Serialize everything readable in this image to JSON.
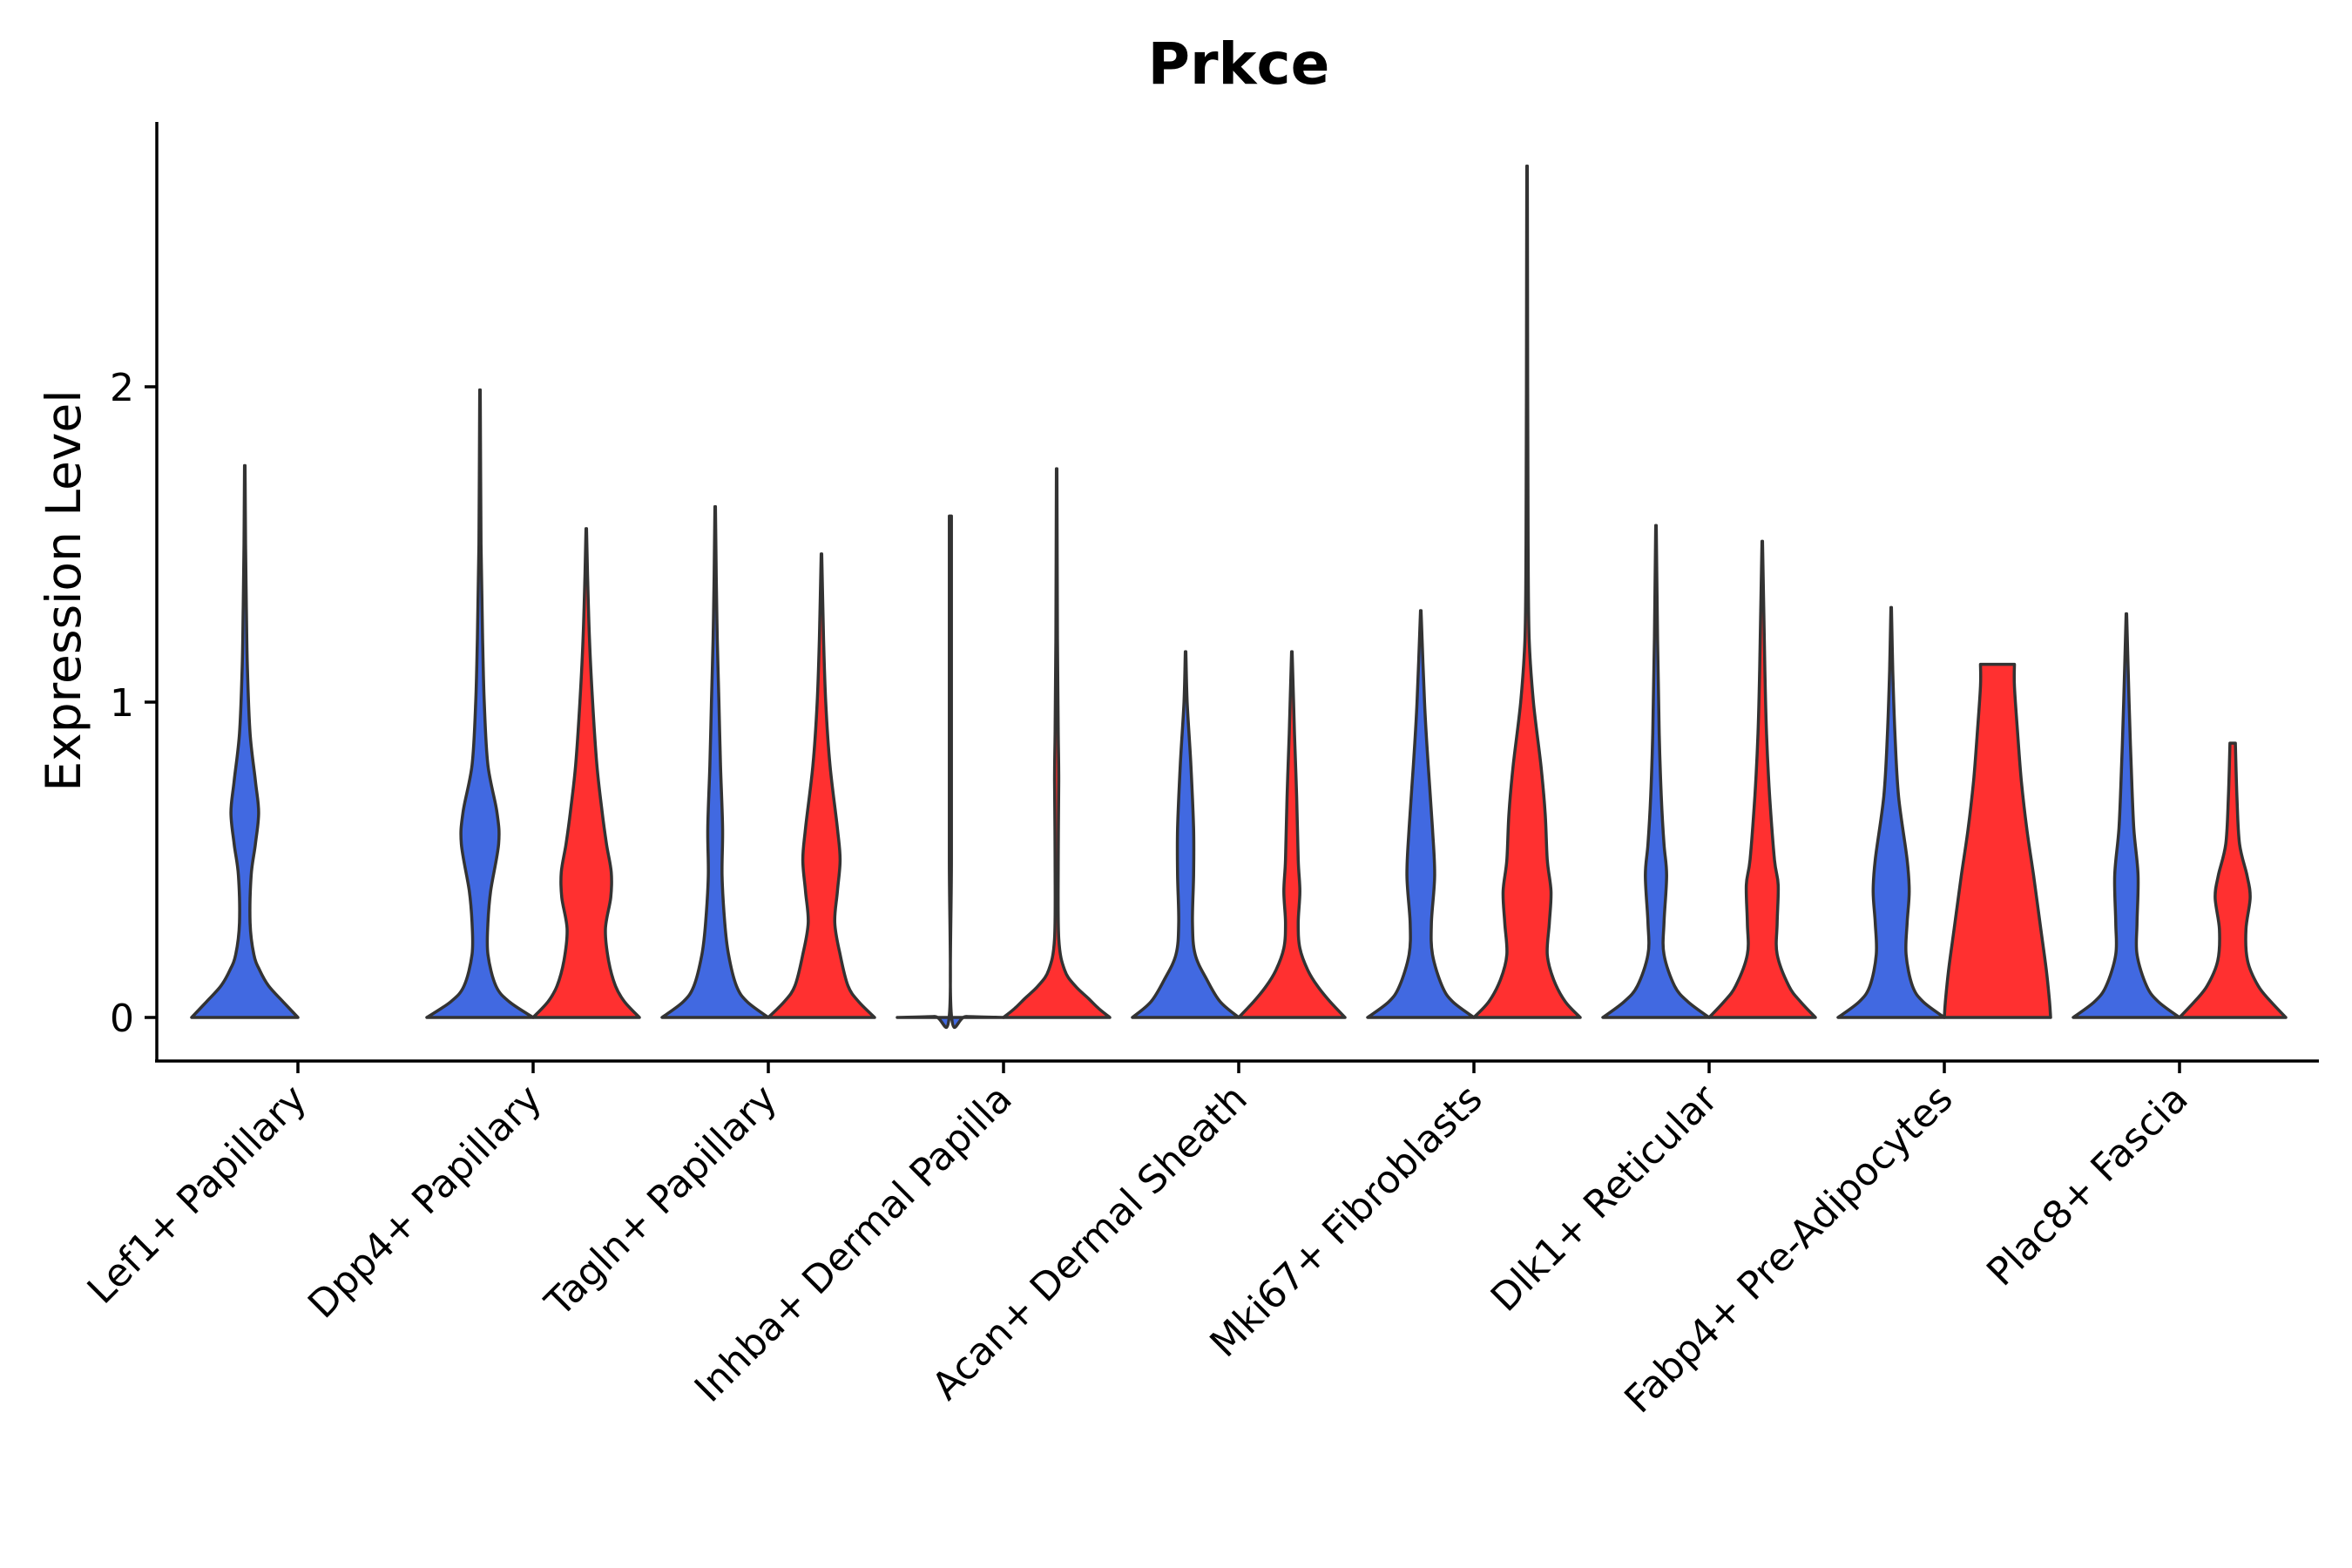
{
  "chart_data": {
    "type": "violin",
    "title": "Prkce",
    "ylabel": "Expression Level",
    "xlabel": "",
    "ylim": [
      -0.14,
      2.85
    ],
    "yticks": [
      0,
      1,
      2
    ],
    "grid": false,
    "colors": {
      "left": "#4169E1",
      "right": "#FF3030",
      "outline": "#333333"
    },
    "categories": [
      "Lef1+ Papillary",
      "Dpp4+ Papillary",
      "Tagln+ Papillary",
      "Inhba+ Dermal Papilla",
      "Acan+ Dermal Sheath",
      "Mki67+ Fibroblasts",
      "Dlk1+ Reticular",
      "Fabp4+ Pre-Adipocytes",
      "Plac8+ Fascia"
    ],
    "series": [
      {
        "violins": [
          {
            "max": 1.75,
            "profile": [
              [
                0,
                1
              ],
              [
                0.05,
                0.72
              ],
              [
                0.1,
                0.45
              ],
              [
                0.15,
                0.28
              ],
              [
                0.2,
                0.17
              ],
              [
                0.3,
                0.1
              ],
              [
                0.45,
                0.12
              ],
              [
                0.55,
                0.2
              ],
              [
                0.65,
                0.26
              ],
              [
                0.75,
                0.2
              ],
              [
                0.9,
                0.1
              ],
              [
                1.1,
                0.05
              ],
              [
                1.3,
                0.03
              ],
              [
                1.5,
                0.015
              ],
              [
                1.75,
                0.005
              ]
            ]
          },
          {
            "max": 1.99,
            "profile": [
              [
                0,
                1
              ],
              [
                0.05,
                0.55
              ],
              [
                0.1,
                0.3
              ],
              [
                0.2,
                0.15
              ],
              [
                0.3,
                0.15
              ],
              [
                0.4,
                0.2
              ],
              [
                0.55,
                0.35
              ],
              [
                0.65,
                0.32
              ],
              [
                0.8,
                0.15
              ],
              [
                1.0,
                0.08
              ],
              [
                1.2,
                0.05
              ],
              [
                1.5,
                0.02
              ],
              [
                1.99,
                0.005
              ]
            ]
          },
          {
            "max": 1.62,
            "profile": [
              [
                0,
                1
              ],
              [
                0.05,
                0.6
              ],
              [
                0.1,
                0.4
              ],
              [
                0.2,
                0.25
              ],
              [
                0.3,
                0.18
              ],
              [
                0.45,
                0.13
              ],
              [
                0.6,
                0.14
              ],
              [
                0.8,
                0.1
              ],
              [
                1.0,
                0.07
              ],
              [
                1.2,
                0.04
              ],
              [
                1.4,
                0.02
              ],
              [
                1.62,
                0.005
              ]
            ]
          },
          {
            "max": 1.59,
            "profile": [
              [
                0,
                1
              ],
              [
                0.003,
                0.3
              ],
              [
                0.006,
                0.02
              ],
              [
                0.5,
                0.02
              ],
              [
                1.0,
                0.02
              ],
              [
                1.59,
                0.02
              ]
            ]
          },
          {
            "max": 1.16,
            "profile": [
              [
                0,
                1
              ],
              [
                0.05,
                0.65
              ],
              [
                0.12,
                0.4
              ],
              [
                0.2,
                0.18
              ],
              [
                0.3,
                0.13
              ],
              [
                0.45,
                0.15
              ],
              [
                0.6,
                0.15
              ],
              [
                0.8,
                0.1
              ],
              [
                1.0,
                0.03
              ],
              [
                1.16,
                0.005
              ]
            ]
          },
          {
            "max": 1.29,
            "profile": [
              [
                0,
                1
              ],
              [
                0.05,
                0.6
              ],
              [
                0.1,
                0.4
              ],
              [
                0.2,
                0.22
              ],
              [
                0.3,
                0.2
              ],
              [
                0.45,
                0.26
              ],
              [
                0.6,
                0.22
              ],
              [
                0.8,
                0.14
              ],
              [
                1.0,
                0.07
              ],
              [
                1.29,
                0.005
              ]
            ]
          },
          {
            "max": 1.56,
            "profile": [
              [
                0,
                1
              ],
              [
                0.05,
                0.6
              ],
              [
                0.1,
                0.35
              ],
              [
                0.2,
                0.15
              ],
              [
                0.3,
                0.15
              ],
              [
                0.45,
                0.2
              ],
              [
                0.55,
                0.15
              ],
              [
                0.7,
                0.1
              ],
              [
                0.9,
                0.06
              ],
              [
                1.2,
                0.03
              ],
              [
                1.56,
                0.005
              ]
            ]
          },
          {
            "max": 1.3,
            "profile": [
              [
                0,
                1
              ],
              [
                0.05,
                0.6
              ],
              [
                0.1,
                0.4
              ],
              [
                0.2,
                0.28
              ],
              [
                0.3,
                0.3
              ],
              [
                0.4,
                0.34
              ],
              [
                0.5,
                0.3
              ],
              [
                0.7,
                0.14
              ],
              [
                0.9,
                0.07
              ],
              [
                1.1,
                0.03
              ],
              [
                1.3,
                0.005
              ]
            ]
          },
          {
            "max": 1.28,
            "profile": [
              [
                0,
                1
              ],
              [
                0.05,
                0.6
              ],
              [
                0.1,
                0.38
              ],
              [
                0.2,
                0.2
              ],
              [
                0.3,
                0.2
              ],
              [
                0.45,
                0.22
              ],
              [
                0.6,
                0.14
              ],
              [
                0.8,
                0.09
              ],
              [
                1.0,
                0.05
              ],
              [
                1.28,
                0.005
              ]
            ]
          }
        ]
      },
      {
        "violins": null
      },
      {
        "violins": [
          null,
          {
            "max": 1.55,
            "profile": [
              [
                0,
                1
              ],
              [
                0.05,
                0.72
              ],
              [
                0.1,
                0.55
              ],
              [
                0.18,
                0.42
              ],
              [
                0.28,
                0.36
              ],
              [
                0.38,
                0.46
              ],
              [
                0.46,
                0.47
              ],
              [
                0.55,
                0.38
              ],
              [
                0.65,
                0.3
              ],
              [
                0.8,
                0.2
              ],
              [
                1.0,
                0.12
              ],
              [
                1.2,
                0.06
              ],
              [
                1.4,
                0.025
              ],
              [
                1.55,
                0.005
              ]
            ]
          },
          {
            "max": 1.47,
            "profile": [
              [
                0,
                1
              ],
              [
                0.05,
                0.7
              ],
              [
                0.1,
                0.5
              ],
              [
                0.2,
                0.35
              ],
              [
                0.3,
                0.25
              ],
              [
                0.4,
                0.3
              ],
              [
                0.5,
                0.35
              ],
              [
                0.6,
                0.3
              ],
              [
                0.8,
                0.16
              ],
              [
                1.0,
                0.08
              ],
              [
                1.2,
                0.04
              ],
              [
                1.47,
                0.005
              ]
            ]
          },
          {
            "max": 1.74,
            "profile": [
              [
                0,
                1
              ],
              [
                0.03,
                0.78
              ],
              [
                0.06,
                0.6
              ],
              [
                0.1,
                0.35
              ],
              [
                0.15,
                0.15
              ],
              [
                0.25,
                0.04
              ],
              [
                0.5,
                0.03
              ],
              [
                0.75,
                0.04
              ],
              [
                0.9,
                0.03
              ],
              [
                1.2,
                0.015
              ],
              [
                1.74,
                0.005
              ]
            ]
          },
          {
            "max": 1.16,
            "profile": [
              [
                0,
                1
              ],
              [
                0.05,
                0.72
              ],
              [
                0.1,
                0.48
              ],
              [
                0.15,
                0.3
              ],
              [
                0.22,
                0.15
              ],
              [
                0.3,
                0.12
              ],
              [
                0.4,
                0.15
              ],
              [
                0.5,
                0.12
              ],
              [
                0.7,
                0.09
              ],
              [
                0.9,
                0.05
              ],
              [
                1.16,
                0.005
              ]
            ]
          },
          {
            "max": 2.7,
            "profile": [
              [
                0,
                1
              ],
              [
                0.05,
                0.72
              ],
              [
                0.12,
                0.5
              ],
              [
                0.2,
                0.38
              ],
              [
                0.3,
                0.42
              ],
              [
                0.4,
                0.45
              ],
              [
                0.5,
                0.38
              ],
              [
                0.65,
                0.34
              ],
              [
                0.8,
                0.26
              ],
              [
                1.0,
                0.12
              ],
              [
                1.2,
                0.04
              ],
              [
                1.5,
                0.02
              ],
              [
                2.0,
                0.012
              ],
              [
                2.7,
                0.005
              ]
            ]
          },
          {
            "max": 1.51,
            "profile": [
              [
                0,
                1
              ],
              [
                0.05,
                0.72
              ],
              [
                0.1,
                0.5
              ],
              [
                0.2,
                0.28
              ],
              [
                0.3,
                0.28
              ],
              [
                0.42,
                0.3
              ],
              [
                0.5,
                0.23
              ],
              [
                0.7,
                0.14
              ],
              [
                0.9,
                0.08
              ],
              [
                1.1,
                0.05
              ],
              [
                1.51,
                0.005
              ]
            ]
          },
          {
            "max": 1.12,
            "profile": [
              [
                0,
                1
              ],
              [
                0.05,
                0.98
              ],
              [
                0.15,
                0.92
              ],
              [
                0.3,
                0.8
              ],
              [
                0.45,
                0.68
              ],
              [
                0.6,
                0.55
              ],
              [
                0.75,
                0.45
              ],
              [
                0.9,
                0.38
              ],
              [
                1.05,
                0.32
              ],
              [
                1.12,
                0.32
              ]
            ]
          },
          {
            "max": 0.87,
            "profile": [
              [
                0,
                1
              ],
              [
                0.05,
                0.72
              ],
              [
                0.1,
                0.48
              ],
              [
                0.18,
                0.28
              ],
              [
                0.28,
                0.25
              ],
              [
                0.38,
                0.33
              ],
              [
                0.45,
                0.27
              ],
              [
                0.55,
                0.13
              ],
              [
                0.7,
                0.08
              ],
              [
                0.87,
                0.05
              ]
            ]
          }
        ]
      }
    ]
  }
}
